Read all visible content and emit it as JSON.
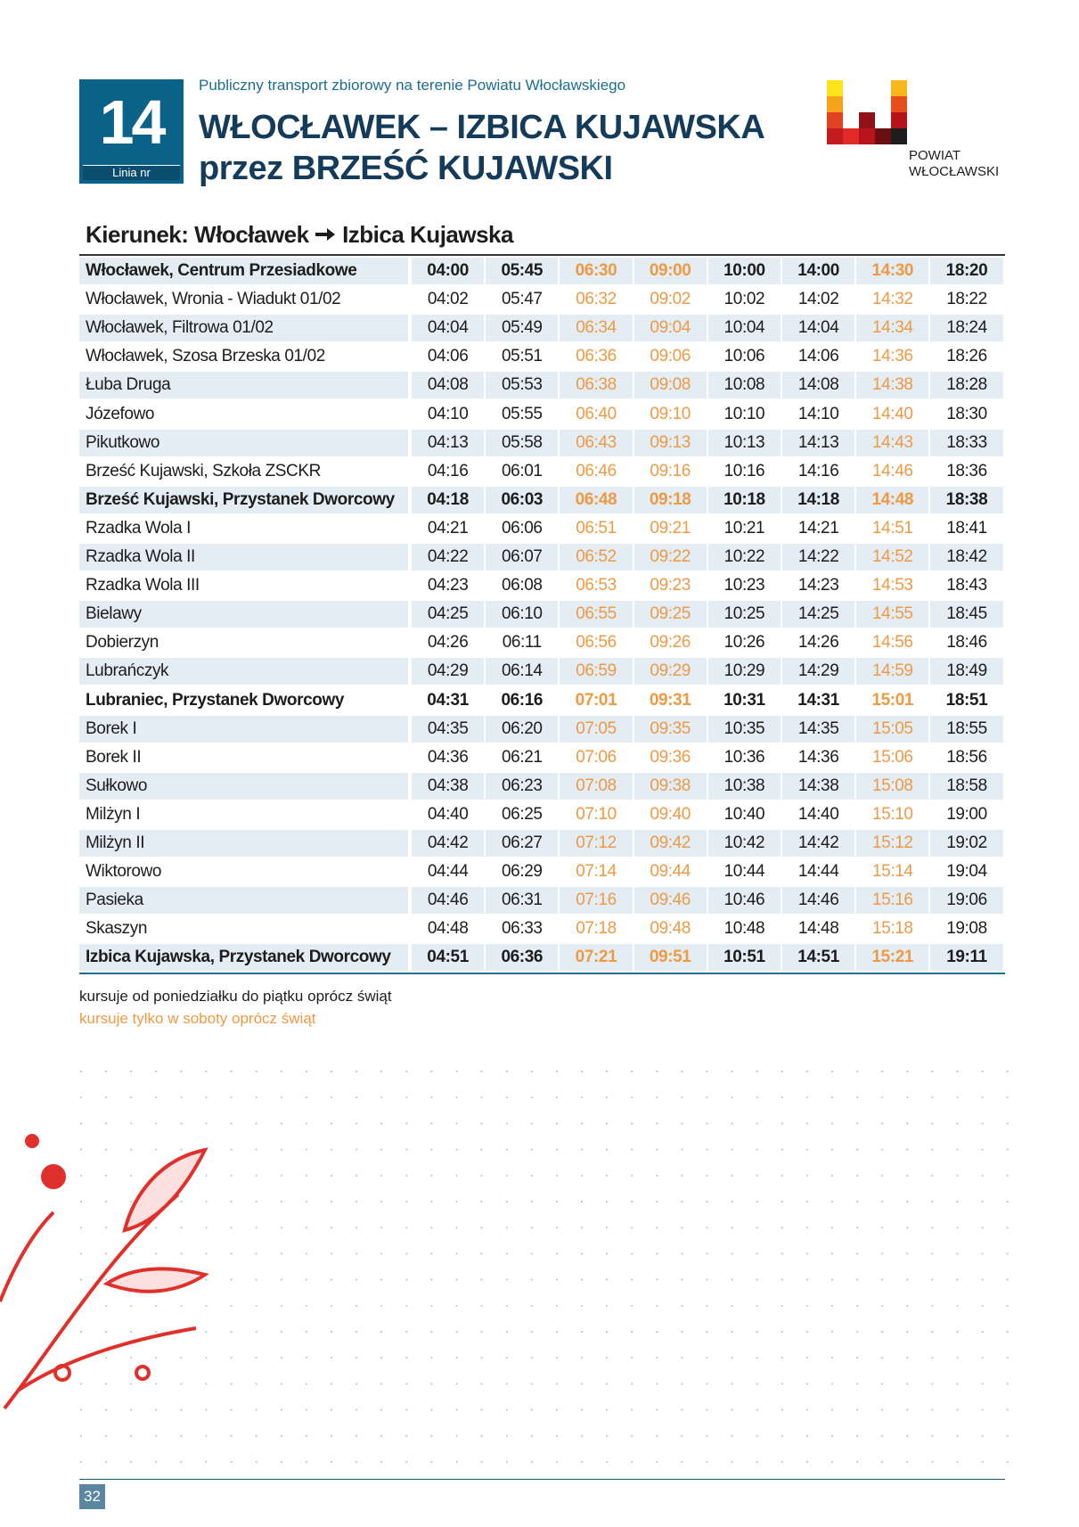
{
  "header": {
    "line_number": "14",
    "line_label": "Linia nr",
    "subtitle": "Publiczny transport zbiorowy na terenie Powiatu Włocławskiego",
    "title_line1": "WŁOCŁAWEK – IZBICA KUJAWSKA",
    "title_line2": "przez BRZEŚĆ KUJAWSKI",
    "logo_line1": "POWIAT",
    "logo_line2": "WŁOCŁAWSKI"
  },
  "direction": {
    "label": "Kierunek:",
    "from": "Włocławek",
    "to": "Izbica Kujawska"
  },
  "table": {
    "bold_rows": [
      0,
      8,
      15,
      24
    ],
    "saturday_columns": [
      2,
      3,
      6
    ],
    "saturday_color": "#ee9a45",
    "rows": [
      {
        "stop": "Włocławek, Centrum Przesiadkowe",
        "times": [
          "04:00",
          "05:45",
          "06:30",
          "09:00",
          "10:00",
          "14:00",
          "14:30",
          "18:20"
        ]
      },
      {
        "stop": "Włocławek, Wronia - Wiadukt 01/02",
        "times": [
          "04:02",
          "05:47",
          "06:32",
          "09:02",
          "10:02",
          "14:02",
          "14:32",
          "18:22"
        ]
      },
      {
        "stop": "Włocławek, Filtrowa 01/02",
        "times": [
          "04:04",
          "05:49",
          "06:34",
          "09:04",
          "10:04",
          "14:04",
          "14:34",
          "18:24"
        ]
      },
      {
        "stop": "Włocławek, Szosa Brzeska 01/02",
        "times": [
          "04:06",
          "05:51",
          "06:36",
          "09:06",
          "10:06",
          "14:06",
          "14:36",
          "18:26"
        ]
      },
      {
        "stop": "Łuba Druga",
        "times": [
          "04:08",
          "05:53",
          "06:38",
          "09:08",
          "10:08",
          "14:08",
          "14:38",
          "18:28"
        ]
      },
      {
        "stop": "Józefowo",
        "times": [
          "04:10",
          "05:55",
          "06:40",
          "09:10",
          "10:10",
          "14:10",
          "14:40",
          "18:30"
        ]
      },
      {
        "stop": "Pikutkowo",
        "times": [
          "04:13",
          "05:58",
          "06:43",
          "09:13",
          "10:13",
          "14:13",
          "14:43",
          "18:33"
        ]
      },
      {
        "stop": "Brześć Kujawski, Szkoła ZSCKR",
        "times": [
          "04:16",
          "06:01",
          "06:46",
          "09:16",
          "10:16",
          "14:16",
          "14:46",
          "18:36"
        ]
      },
      {
        "stop": "Brześć Kujawski, Przystanek Dworcowy",
        "times": [
          "04:18",
          "06:03",
          "06:48",
          "09:18",
          "10:18",
          "14:18",
          "14:48",
          "18:38"
        ]
      },
      {
        "stop": "Rzadka Wola I",
        "times": [
          "04:21",
          "06:06",
          "06:51",
          "09:21",
          "10:21",
          "14:21",
          "14:51",
          "18:41"
        ]
      },
      {
        "stop": "Rzadka Wola II",
        "times": [
          "04:22",
          "06:07",
          "06:52",
          "09:22",
          "10:22",
          "14:22",
          "14:52",
          "18:42"
        ]
      },
      {
        "stop": "Rzadka Wola III",
        "times": [
          "04:23",
          "06:08",
          "06:53",
          "09:23",
          "10:23",
          "14:23",
          "14:53",
          "18:43"
        ]
      },
      {
        "stop": "Bielawy",
        "times": [
          "04:25",
          "06:10",
          "06:55",
          "09:25",
          "10:25",
          "14:25",
          "14:55",
          "18:45"
        ]
      },
      {
        "stop": "Dobierzyn",
        "times": [
          "04:26",
          "06:11",
          "06:56",
          "09:26",
          "10:26",
          "14:26",
          "14:56",
          "18:46"
        ]
      },
      {
        "stop": "Lubrańczyk",
        "times": [
          "04:29",
          "06:14",
          "06:59",
          "09:29",
          "10:29",
          "14:29",
          "14:59",
          "18:49"
        ]
      },
      {
        "stop": "Lubraniec, Przystanek Dworcowy",
        "times": [
          "04:31",
          "06:16",
          "07:01",
          "09:31",
          "10:31",
          "14:31",
          "15:01",
          "18:51"
        ]
      },
      {
        "stop": "Borek I",
        "times": [
          "04:35",
          "06:20",
          "07:05",
          "09:35",
          "10:35",
          "14:35",
          "15:05",
          "18:55"
        ]
      },
      {
        "stop": "Borek II",
        "times": [
          "04:36",
          "06:21",
          "07:06",
          "09:36",
          "10:36",
          "14:36",
          "15:06",
          "18:56"
        ]
      },
      {
        "stop": "Sułkowo",
        "times": [
          "04:38",
          "06:23",
          "07:08",
          "09:38",
          "10:38",
          "14:38",
          "15:08",
          "18:58"
        ]
      },
      {
        "stop": "Milżyn I",
        "times": [
          "04:40",
          "06:25",
          "07:10",
          "09:40",
          "10:40",
          "14:40",
          "15:10",
          "19:00"
        ]
      },
      {
        "stop": "Milżyn II",
        "times": [
          "04:42",
          "06:27",
          "07:12",
          "09:42",
          "10:42",
          "14:42",
          "15:12",
          "19:02"
        ]
      },
      {
        "stop": "Wiktorowo",
        "times": [
          "04:44",
          "06:29",
          "07:14",
          "09:44",
          "10:44",
          "14:44",
          "15:14",
          "19:04"
        ]
      },
      {
        "stop": "Pasieka",
        "times": [
          "04:46",
          "06:31",
          "07:16",
          "09:46",
          "10:46",
          "14:46",
          "15:16",
          "19:06"
        ]
      },
      {
        "stop": "Skaszyn",
        "times": [
          "04:48",
          "06:33",
          "07:18",
          "09:48",
          "10:48",
          "14:48",
          "15:18",
          "19:08"
        ]
      },
      {
        "stop": "Izbica Kujawska, Przystanek Dworcowy",
        "times": [
          "04:51",
          "06:36",
          "07:21",
          "09:51",
          "10:51",
          "14:51",
          "15:21",
          "19:11"
        ]
      }
    ]
  },
  "legend": {
    "weekdays": "kursuje od poniedziałku do piątku oprócz świąt",
    "saturdays": "kursuje tylko w soboty oprócz świąt"
  },
  "footer": {
    "page_number": "32"
  }
}
